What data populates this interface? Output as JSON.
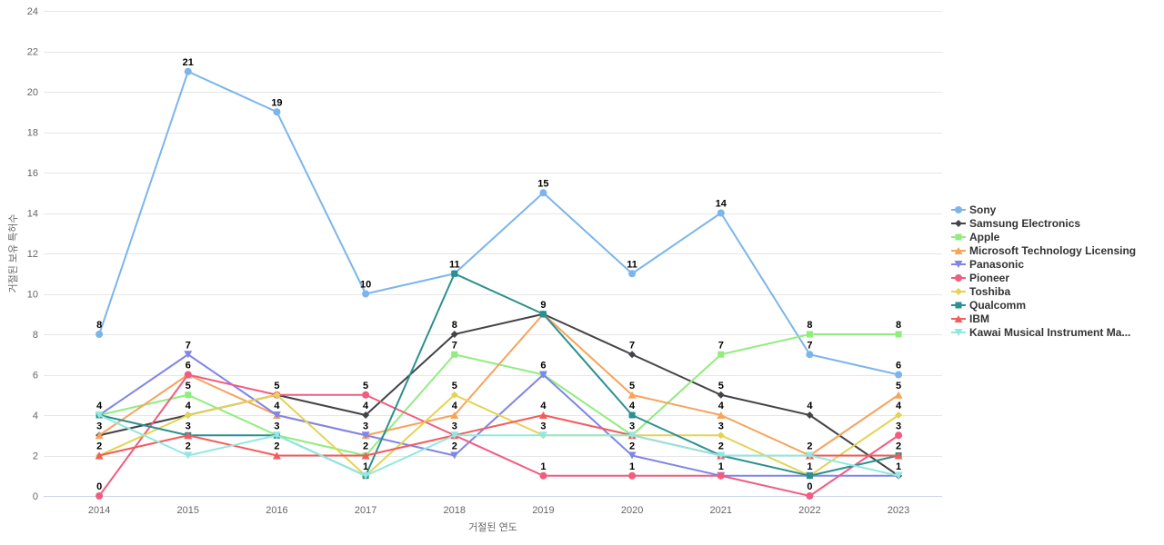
{
  "colors": {
    "background": "#ffffff",
    "gridline": "#e6e6e6",
    "axis_line": "#ccd6eb",
    "axis_label": "#666666",
    "axis_title": "#666666",
    "legend_text": "#333333",
    "data_label": "#000000"
  },
  "chart_data": {
    "type": "line",
    "title": "",
    "xlabel": "거절된 연도",
    "ylabel": "거절된 보유 특허수",
    "ylim": [
      0,
      24
    ],
    "ytick_step": 2,
    "grid": true,
    "legend_position": "right",
    "categories": [
      "2014",
      "2015",
      "2016",
      "2017",
      "2018",
      "2019",
      "2020",
      "2021",
      "2022",
      "2023"
    ],
    "series": [
      {
        "name": "Sony",
        "color": "#7cb5ec",
        "marker": "circle",
        "values": [
          8,
          21,
          19,
          10,
          11,
          15,
          11,
          14,
          7,
          6
        ]
      },
      {
        "name": "Samsung Electronics",
        "color": "#434348",
        "marker": "diamond",
        "values": [
          3,
          4,
          5,
          4,
          8,
          9,
          7,
          5,
          4,
          1
        ]
      },
      {
        "name": "Apple",
        "color": "#90ed7d",
        "marker": "square",
        "values": [
          4,
          5,
          3,
          2,
          7,
          6,
          3,
          7,
          8,
          8
        ]
      },
      {
        "name": "Microsoft Technology Licensing",
        "color": "#f7a35c",
        "marker": "triangle",
        "values": [
          3,
          6,
          4,
          3,
          4,
          9,
          5,
          4,
          2,
          5
        ]
      },
      {
        "name": "Panasonic",
        "color": "#8085e9",
        "marker": "triangle-down",
        "values": [
          4,
          7,
          4,
          3,
          2,
          6,
          2,
          1,
          1,
          1
        ]
      },
      {
        "name": "Pioneer",
        "color": "#f15c80",
        "marker": "circle",
        "values": [
          0,
          6,
          5,
          5,
          3,
          1,
          1,
          1,
          0,
          3
        ]
      },
      {
        "name": "Toshiba",
        "color": "#e4d354",
        "marker": "diamond",
        "values": [
          2,
          4,
          5,
          1,
          5,
          3,
          3,
          3,
          1,
          4
        ]
      },
      {
        "name": "Qualcomm",
        "color": "#2b908f",
        "marker": "square",
        "values": [
          4,
          3,
          3,
          1,
          11,
          9,
          4,
          2,
          1,
          2
        ]
      },
      {
        "name": "IBM",
        "color": "#f45b5b",
        "marker": "triangle",
        "values": [
          2,
          3,
          2,
          2,
          3,
          4,
          3,
          2,
          2,
          2
        ]
      },
      {
        "name": "Kawai Musical Instrument Ma...",
        "color": "#91e8e1",
        "marker": "triangle-down",
        "values": [
          4,
          2,
          3,
          1,
          3,
          3,
          3,
          2,
          2,
          1
        ]
      }
    ]
  }
}
